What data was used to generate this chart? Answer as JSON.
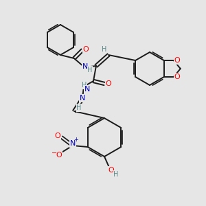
{
  "bg_color": "#e6e6e6",
  "bond_color": "#1a1a1a",
  "atom_colors": {
    "O": "#ff0000",
    "N": "#0000bb",
    "H": "#5a8a8a",
    "C": "#1a1a1a"
  },
  "figsize": [
    3.0,
    3.0
  ],
  "dpi": 100
}
